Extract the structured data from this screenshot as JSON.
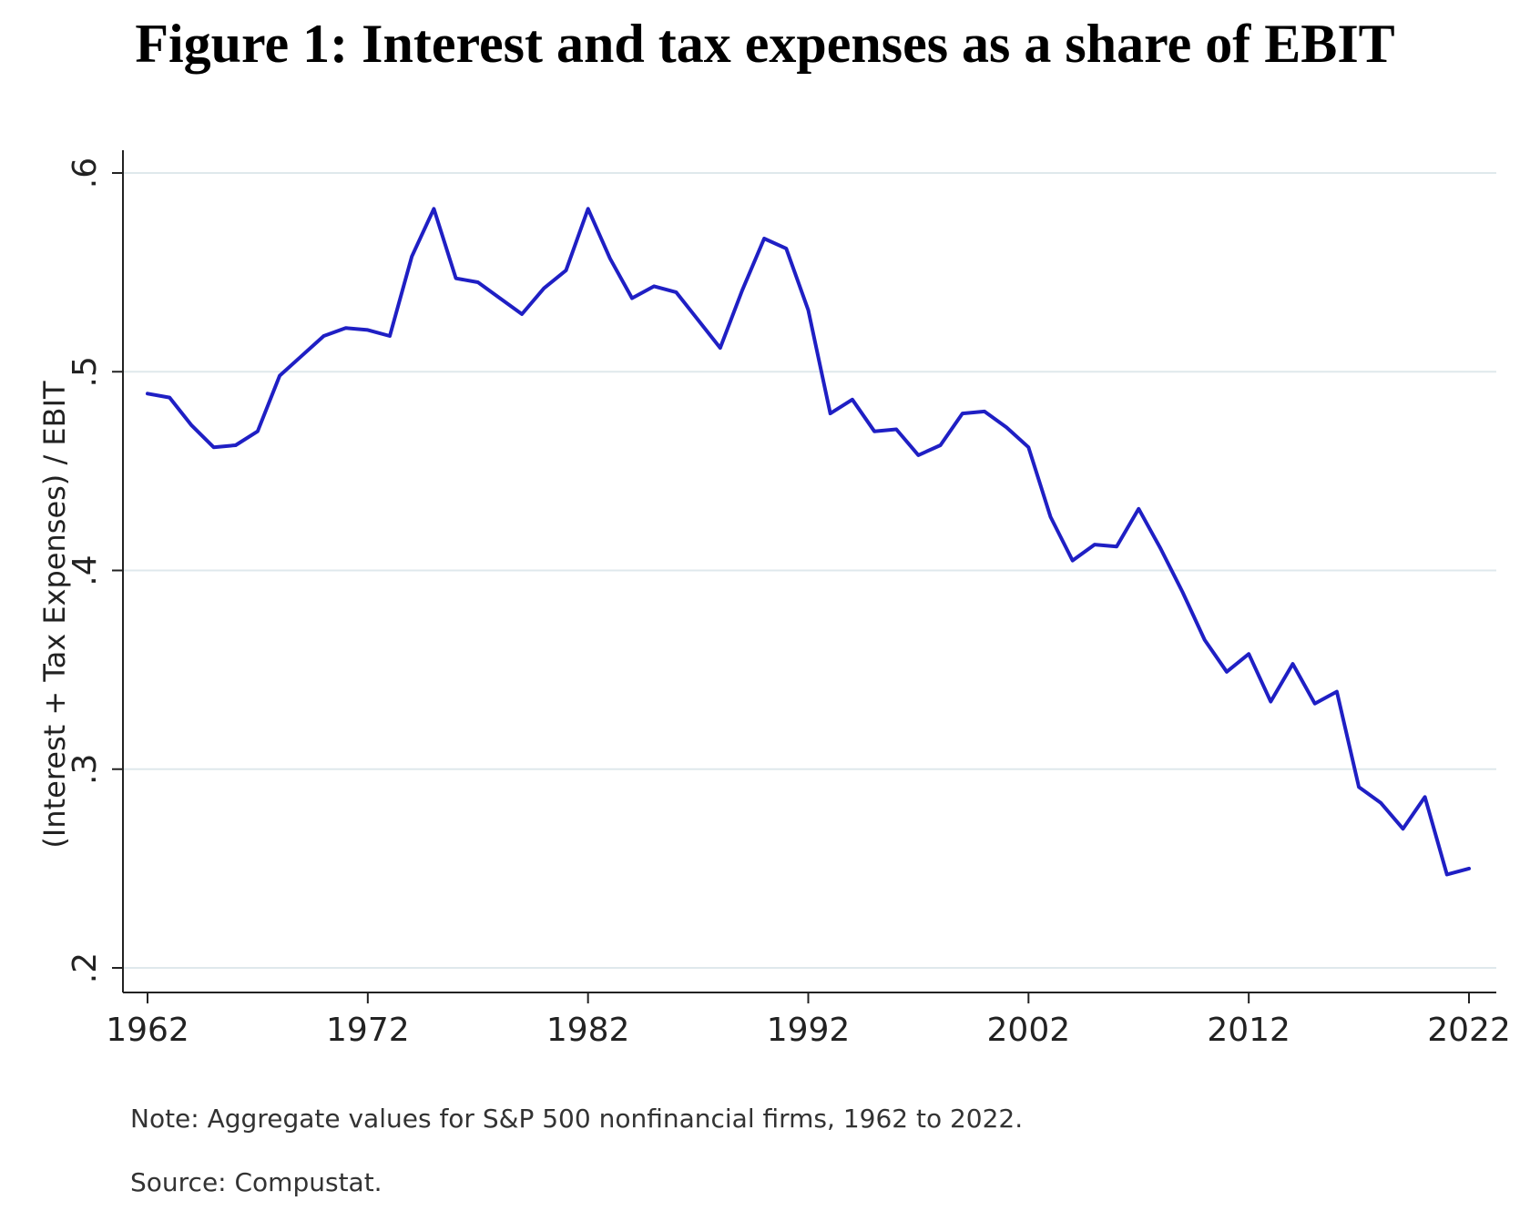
{
  "title": "Figure 1: Interest and tax expenses as a share of EBIT",
  "note": "Note: Aggregate values for S&P 500 nonfinancial firms, 1962 to 2022.",
  "source": "Source: Compustat.",
  "colors": {
    "line": "#1f1fc4",
    "grid": "#dfe8ec",
    "axis": "#222222"
  },
  "chart_data": {
    "type": "line",
    "title": "",
    "xlabel": "",
    "ylabel": "(Interest + Tax Expenses) / EBIT",
    "xlim": [
      1962,
      2022
    ],
    "ylim": [
      0.2,
      0.6
    ],
    "xticks": [
      1962,
      1972,
      1982,
      1992,
      2002,
      2012,
      2022
    ],
    "yticks": [
      0.2,
      0.3,
      0.4,
      0.5,
      0.6
    ],
    "ytick_labels": [
      ".2",
      ".3",
      ".4",
      ".5",
      ".6"
    ],
    "grid": "horizontal",
    "series": [
      {
        "x": [
          1962,
          1963,
          1964,
          1965,
          1966,
          1967,
          1968,
          1969,
          1970,
          1971,
          1972,
          1973,
          1974,
          1975,
          1976,
          1977,
          1978,
          1979,
          1980,
          1981,
          1982,
          1983,
          1984,
          1985,
          1986,
          1987,
          1988,
          1989,
          1990,
          1991,
          1992,
          1993,
          1994,
          1995,
          1996,
          1997,
          1998,
          1999,
          2000,
          2001,
          2002,
          2003,
          2004,
          2005,
          2006,
          2007,
          2008,
          2009,
          2010,
          2011,
          2012,
          2013,
          2014,
          2015,
          2016,
          2017,
          2018,
          2019,
          2020,
          2021,
          2022
        ],
        "values": [
          0.489,
          0.487,
          0.473,
          0.462,
          0.463,
          0.47,
          0.498,
          0.508,
          0.518,
          0.522,
          0.521,
          0.518,
          0.558,
          0.582,
          0.547,
          0.545,
          0.537,
          0.529,
          0.542,
          0.551,
          0.582,
          0.557,
          0.537,
          0.543,
          0.54,
          0.526,
          0.512,
          0.541,
          0.567,
          0.562,
          0.531,
          0.479,
          0.486,
          0.47,
          0.471,
          0.458,
          0.463,
          0.479,
          0.48,
          0.472,
          0.462,
          0.427,
          0.405,
          0.413,
          0.412,
          0.431,
          0.411,
          0.389,
          0.365,
          0.349,
          0.358,
          0.334,
          0.353,
          0.333,
          0.339,
          0.291,
          0.283,
          0.27,
          0.286,
          0.247,
          0.25
        ]
      }
    ]
  }
}
